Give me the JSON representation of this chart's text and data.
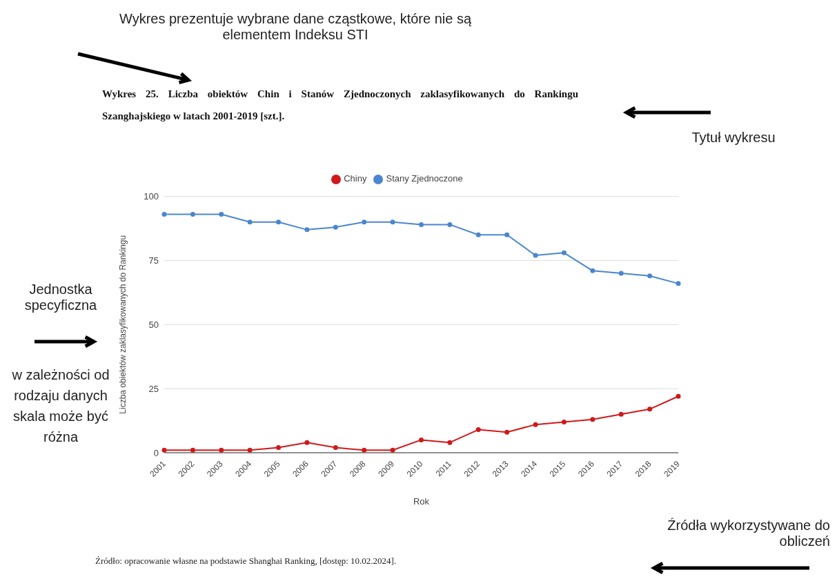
{
  "chart_data": {
    "type": "line",
    "title": "Wykres 25. Liczba obiektów Chin i Stanów Zjednoczonych zaklasyfikowanych do Rankingu Szanghajskiego w latach 2001-2019 [szt.].",
    "xlabel": "Rok",
    "ylabel": "Liczba obiektów zaklasyfikowanych do Rankingu",
    "categories": [
      "2001",
      "2002",
      "2003",
      "2004",
      "2005",
      "2006",
      "2007",
      "2008",
      "2009",
      "2010",
      "2011",
      "2012",
      "2013",
      "2014",
      "2015",
      "2016",
      "2017",
      "2018",
      "2019"
    ],
    "series": [
      {
        "name": "Chiny",
        "color": "#d0191a",
        "values": [
          1,
          1,
          1,
          1,
          2,
          4,
          2,
          1,
          1,
          5,
          4,
          9,
          8,
          11,
          12,
          13,
          15,
          17,
          22
        ]
      },
      {
        "name": "Stany Zjednoczone",
        "color": "#4a86d0",
        "values": [
          93,
          93,
          93,
          90,
          90,
          87,
          88,
          90,
          90,
          89,
          89,
          85,
          85,
          77,
          78,
          71,
          70,
          69,
          66
        ]
      }
    ],
    "ylim": [
      0,
      100
    ],
    "yticks": [
      0,
      25,
      50,
      75,
      100
    ],
    "grid": "y",
    "legend": "top",
    "marker": "circle",
    "line_style": "solid",
    "annotations": [
      "Wykres prezentuje wybrane dane cząstkowe, które nie są elementem Indeksu STI",
      "Tytuł wykresu",
      "Jednostka specyficzna",
      "w zależności od rodzaju danych skala może być różna",
      "Źródła wykorzystywane do obliczeń",
      "Źródło: opracowanie własne na podstawie Shanghai Ranking, [dostęp: 10.02.2024]."
    ]
  }
}
